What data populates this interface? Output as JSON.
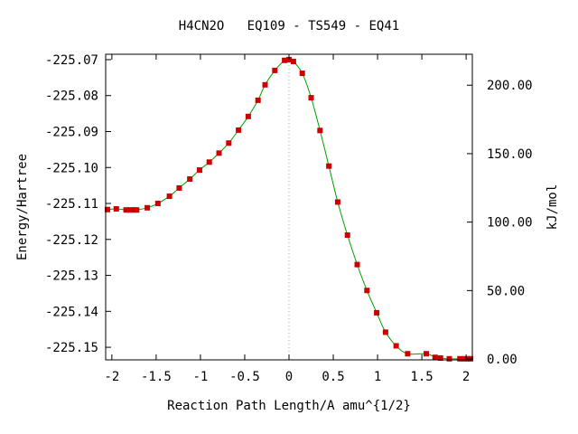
{
  "chart_data": {
    "type": "line",
    "title": "H4CN2O   EQ109 - TS549 - EQ41",
    "xlabel": "Reaction Path Length/A amu^{1/2}",
    "ylabel": "Energy/Hartree",
    "y2label": "kJ/mol",
    "xlim": [
      -2.07,
      2.07
    ],
    "ylim": [
      -225.1535,
      -225.0685
    ],
    "y2lim": [
      -0.6,
      222.6
    ],
    "x_ticks": [
      -2,
      -1.5,
      -1,
      -0.5,
      0,
      0.5,
      1,
      1.5,
      2
    ],
    "x_tick_labels": [
      "-2",
      "-1.5",
      "-1",
      "-0.5",
      "0",
      "0.5",
      "1",
      "1.5",
      "2"
    ],
    "y_ticks": [
      -225.07,
      -225.08,
      -225.09,
      -225.1,
      -225.11,
      -225.12,
      -225.13,
      -225.14,
      -225.15
    ],
    "y_tick_labels": [
      "-225.07",
      "-225.08",
      "-225.09",
      "-225.10",
      "-225.11",
      "-225.12",
      "-225.13",
      "-225.14",
      "-225.15"
    ],
    "y2_ticks": [
      200,
      150,
      100,
      50,
      0
    ],
    "y2_tick_labels": [
      "200.00",
      "150.00",
      "100.00",
      "50.00",
      "0.00"
    ],
    "ts_marker_x": 0,
    "line_color": "#00a000",
    "marker_color": "#cc0000",
    "series": [
      {
        "x": [
          -2.05,
          -1.95,
          -1.84,
          -1.8,
          -1.76,
          -1.72,
          -1.6,
          -1.48,
          -1.35,
          -1.24,
          -1.12,
          -1.01,
          -0.9,
          -0.79,
          -0.68,
          -0.57,
          -0.46,
          -0.35,
          -0.27,
          -0.16,
          -0.05,
          0.0,
          0.05,
          0.15,
          0.25,
          0.35,
          0.45,
          0.55,
          0.66,
          0.77,
          0.88,
          0.99,
          1.09,
          1.21,
          1.34,
          1.55,
          1.65,
          1.71,
          1.81,
          1.93,
          1.98,
          2.02,
          2.05
        ],
        "y": [
          -225.1117,
          -225.1115,
          -225.1118,
          -225.1118,
          -225.1118,
          -225.1118,
          -225.1112,
          -225.11,
          -225.108,
          -225.1057,
          -225.1032,
          -225.1007,
          -225.0985,
          -225.096,
          -225.0932,
          -225.0896,
          -225.0858,
          -225.0813,
          -225.077,
          -225.073,
          -225.0702,
          -225.07,
          -225.0705,
          -225.0738,
          -225.0806,
          -225.0897,
          -225.0996,
          -225.1096,
          -225.1188,
          -225.127,
          -225.1342,
          -225.1404,
          -225.1458,
          -225.1496,
          -225.1518,
          -225.1518,
          -225.1528,
          -225.153,
          -225.1532,
          -225.1532,
          -225.1532,
          -225.1532,
          -225.1532
        ]
      }
    ]
  }
}
